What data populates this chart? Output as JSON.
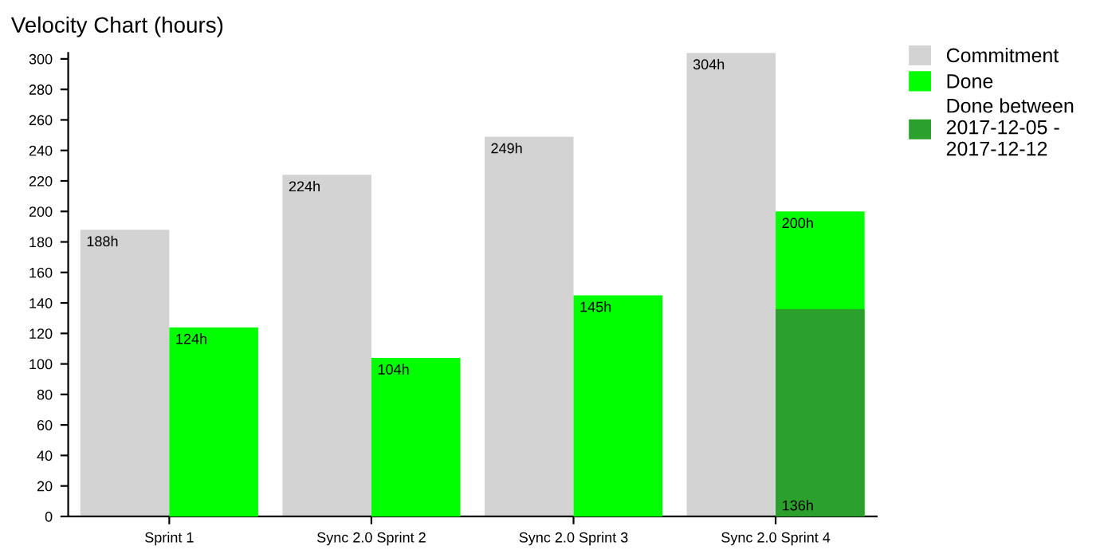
{
  "chart_data": {
    "type": "bar",
    "title": "Velocity Chart (hours)",
    "categories": [
      "Sprint 1",
      "Sync 2.0 Sprint 2",
      "Sync 2.0 Sprint 3",
      "Sync 2.0 Sprint 4"
    ],
    "series": [
      {
        "name": "Commitment",
        "color": "#d3d3d3",
        "values": [
          188,
          224,
          249,
          304
        ],
        "value_labels": [
          "188h",
          "224h",
          "249h",
          "304h"
        ]
      },
      {
        "name": "Done",
        "color": "#00ff00",
        "values": [
          124,
          104,
          145,
          200
        ],
        "value_labels": [
          "124h",
          "104h",
          "145h",
          "200h"
        ]
      },
      {
        "name": "Done between 2017-12-05 - 2017-12-12",
        "color": "#2ca02c",
        "values": [
          null,
          null,
          null,
          136
        ],
        "value_labels": [
          null,
          null,
          null,
          "136h"
        ]
      }
    ],
    "ylim": [
      0,
      304
    ],
    "yticks": [
      0,
      20,
      40,
      60,
      80,
      100,
      120,
      140,
      160,
      180,
      200,
      220,
      240,
      260,
      280,
      300
    ],
    "legend": "top right",
    "grid": false
  }
}
